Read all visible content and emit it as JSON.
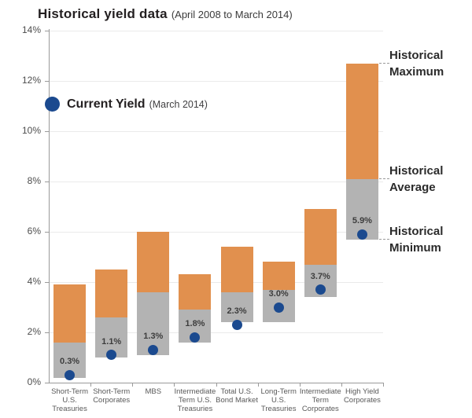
{
  "title": {
    "main": "Historical yield data",
    "subtitle": "(April 2008 to March 2014)"
  },
  "legend": {
    "label": "Current Yield",
    "sublabel": "(March 2014)"
  },
  "annotations": {
    "maximum": "Historical\nMaximum",
    "average": "Historical\nAverage",
    "minimum": "Historical\nMinimum"
  },
  "colors": {
    "historical_range_upper": "#E1904E",
    "historical_range_lower": "#B3B3B3",
    "current_yield_dot": "#1B4A8F",
    "gridline": "#EAEAEA",
    "axis": "#9A9A9A",
    "dashed_leader": "#9A9A9A",
    "axis_label": "#4D4D4D",
    "category_label": "#595959",
    "value_label": "#3D3D3D"
  },
  "y_axis": {
    "min": 0,
    "max": 14,
    "step": 2,
    "suffix": "%"
  },
  "chart_data": {
    "type": "bar",
    "title": "Historical yield data (April 2008 to March 2014)",
    "xlabel": "",
    "ylabel": "",
    "ylim": [
      0,
      14
    ],
    "grid": true,
    "legend_position": "inside top-left",
    "categories": [
      "Short-Term U.S. Treasuries",
      "Short-Term Corporates",
      "MBS",
      "Intermediate Term U.S. Treasuries",
      "Total U.S. Bond Market",
      "Long-Term U.S. Treasuries",
      "Intermediate Term Corporates",
      "High Yield Corporates"
    ],
    "category_label_lines": [
      [
        "Short-Term",
        "U.S.",
        "Treasuries"
      ],
      [
        "Short-Term",
        "Corporates"
      ],
      [
        "MBS"
      ],
      [
        "Intermediate",
        "Term U.S.",
        "Treasuries"
      ],
      [
        "Total U.S.",
        "Bond Market"
      ],
      [
        "Long-Term",
        "U.S.",
        "Treasuries"
      ],
      [
        "Intermediate",
        "Term",
        "Corporates"
      ],
      [
        "High Yield",
        "Corporates"
      ]
    ],
    "series": [
      {
        "name": "Historical Minimum",
        "values": [
          0.2,
          1.0,
          1.1,
          1.6,
          2.4,
          2.4,
          3.4,
          5.7
        ]
      },
      {
        "name": "Historical Average",
        "values": [
          1.6,
          2.6,
          3.6,
          2.9,
          3.6,
          3.7,
          4.7,
          8.1
        ]
      },
      {
        "name": "Historical Maximum",
        "values": [
          3.9,
          4.5,
          6.0,
          4.3,
          5.4,
          4.8,
          6.9,
          12.7
        ]
      },
      {
        "name": "Current Yield (March 2014)",
        "values": [
          0.3,
          1.1,
          1.3,
          1.8,
          2.3,
          3.0,
          3.7,
          5.9
        ],
        "labels": [
          "0.3%",
          "1.1%",
          "1.3%",
          "1.8%",
          "2.3%",
          "3.0%",
          "3.7%",
          "5.9%"
        ]
      }
    ]
  }
}
